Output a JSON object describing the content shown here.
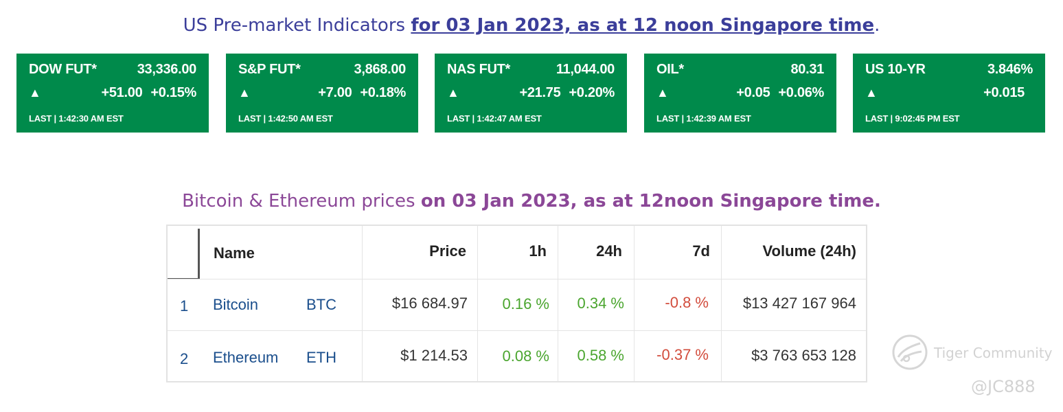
{
  "headline_us": {
    "prefix": "US Pre-market Indicators ",
    "strong": "for 03 Jan 2023, as at 12 noon Singapore time",
    "suffix": "."
  },
  "colors": {
    "card_bg": "#008a4b",
    "positive": "#4aa52e",
    "negative": "#d24c3c",
    "link": "#1a4e8c"
  },
  "cards": [
    {
      "name": "DOW FUT*",
      "value": "33,336.00",
      "arrow": "▲",
      "change": "+51.00",
      "pct": "+0.15%",
      "last": "LAST | 1:42:30 AM EST"
    },
    {
      "name": "S&P FUT*",
      "value": "3,868.00",
      "arrow": "▲",
      "change": "+7.00",
      "pct": "+0.18%",
      "last": "LAST | 1:42:50 AM EST"
    },
    {
      "name": "NAS FUT*",
      "value": "11,044.00",
      "arrow": "▲",
      "change": "+21.75",
      "pct": "+0.20%",
      "last": "LAST | 1:42:47 AM EST"
    },
    {
      "name": "OIL*",
      "value": "80.31",
      "arrow": "▲",
      "change": "+0.05",
      "pct": "+0.06%",
      "last": "LAST | 1:42:39 AM EST"
    },
    {
      "name": "US 10-YR",
      "value": "3.846%",
      "arrow": "▲",
      "change": "+0.015",
      "pct": "",
      "last": "LAST | 9:02:45 PM EST"
    }
  ],
  "headline_crypto": {
    "prefix": "Bitcoin & Ethereum prices ",
    "strong": "on 03 Jan 2023, as at 12noon Singapore time."
  },
  "table": {
    "headers": [
      "Name",
      "Price",
      "1h",
      "24h",
      "7d",
      "Volume (24h)"
    ],
    "rows": [
      {
        "rank": "1",
        "name": "Bitcoin",
        "symbol": "BTC",
        "price": "$16 684.97",
        "h1": "0.16 %",
        "h24": "0.34 %",
        "d7": "-0.8 %",
        "volume": "$13 427 167 964"
      },
      {
        "rank": "2",
        "name": "Ethereum",
        "symbol": "ETH",
        "price": "$1 214.53",
        "h1": "0.08 %",
        "h24": "0.58 %",
        "d7": "-0.37 %",
        "volume": "$3 763 653 128"
      }
    ]
  },
  "watermark": {
    "brand": "Tiger Community",
    "handle": "@JC888"
  }
}
